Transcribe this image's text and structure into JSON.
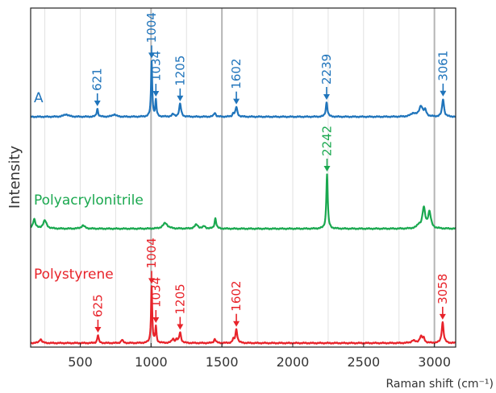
{
  "chart_data": {
    "type": "line",
    "xlabel": "Raman shift (cm⁻¹)",
    "ylabel": "Intensity",
    "xlim": [
      150,
      3150
    ],
    "x_ticks": [
      500,
      1000,
      1500,
      2000,
      2500,
      3000
    ],
    "grid": "vertical",
    "emphasized_gridlines": [
      1000,
      1500,
      3000
    ],
    "series": [
      {
        "name": "A",
        "color": "#1f74bb",
        "baseline": 145,
        "peaks": [
          {
            "x": 621,
            "height": 10,
            "width": 6,
            "label": "621"
          },
          {
            "x": 1004,
            "height": 69,
            "width": 5,
            "label": "1004"
          },
          {
            "x": 1034,
            "height": 20,
            "width": 5,
            "label": "1034"
          },
          {
            "x": 1205,
            "height": 16,
            "width": 8,
            "label": "1205"
          },
          {
            "x": 1602,
            "height": 12,
            "width": 8,
            "label": "1602"
          },
          {
            "x": 2239,
            "height": 18,
            "width": 7,
            "label": "2239"
          },
          {
            "x": 3061,
            "height": 22,
            "width": 8,
            "label": "3061"
          }
        ],
        "minor_peaks": [
          {
            "x": 400,
            "height": 3,
            "width": 20
          },
          {
            "x": 740,
            "height": 3,
            "width": 15
          },
          {
            "x": 1155,
            "height": 3,
            "width": 10
          },
          {
            "x": 1450,
            "height": 5,
            "width": 8
          },
          {
            "x": 1580,
            "height": 4,
            "width": 6
          },
          {
            "x": 2850,
            "height": 4,
            "width": 20
          },
          {
            "x": 2905,
            "height": 13,
            "width": 15
          },
          {
            "x": 2935,
            "height": 7,
            "width": 10
          }
        ]
      },
      {
        "name": "Polyacrylonitrile",
        "color": "#1aa84f",
        "baseline": 284,
        "peaks": [
          {
            "x": 2242,
            "height": 68,
            "width": 6,
            "label": "2242"
          }
        ],
        "minor_peaks": [
          {
            "x": 175,
            "height": 12,
            "width": 10
          },
          {
            "x": 250,
            "height": 10,
            "width": 15
          },
          {
            "x": 520,
            "height": 4,
            "width": 15
          },
          {
            "x": 1100,
            "height": 7,
            "width": 20
          },
          {
            "x": 1320,
            "height": 5,
            "width": 15
          },
          {
            "x": 1375,
            "height": 3,
            "width": 10
          },
          {
            "x": 1454,
            "height": 13,
            "width": 7
          },
          {
            "x": 2890,
            "height": 4,
            "width": 15
          },
          {
            "x": 2925,
            "height": 25,
            "width": 12
          },
          {
            "x": 2965,
            "height": 20,
            "width": 12
          }
        ]
      },
      {
        "name": "Polystyrene",
        "color": "#e8232a",
        "baseline": 426,
        "peaks": [
          {
            "x": 625,
            "height": 10,
            "width": 6,
            "label": "625"
          },
          {
            "x": 1004,
            "height": 70,
            "width": 5,
            "label": "1004"
          },
          {
            "x": 1034,
            "height": 20,
            "width": 5,
            "label": "1034"
          },
          {
            "x": 1205,
            "height": 13,
            "width": 8,
            "label": "1205"
          },
          {
            "x": 1602,
            "height": 17,
            "width": 8,
            "label": "1602"
          },
          {
            "x": 3058,
            "height": 26,
            "width": 8,
            "label": "3058"
          }
        ],
        "minor_peaks": [
          {
            "x": 220,
            "height": 5,
            "width": 10
          },
          {
            "x": 795,
            "height": 4,
            "width": 8
          },
          {
            "x": 1155,
            "height": 5,
            "width": 10
          },
          {
            "x": 1180,
            "height": 4,
            "width": 6
          },
          {
            "x": 1450,
            "height": 5,
            "width": 8
          },
          {
            "x": 1580,
            "height": 4,
            "width": 6
          },
          {
            "x": 2850,
            "height": 3,
            "width": 15
          },
          {
            "x": 2905,
            "height": 8,
            "width": 12
          },
          {
            "x": 2925,
            "height": 5,
            "width": 8
          }
        ]
      }
    ]
  },
  "axes": {
    "x_title": "Raman shift (cm⁻¹)",
    "y_title": "Intensity"
  },
  "series_labels": [
    "A",
    "Polyacrylonitrile",
    "Polystyrene"
  ]
}
